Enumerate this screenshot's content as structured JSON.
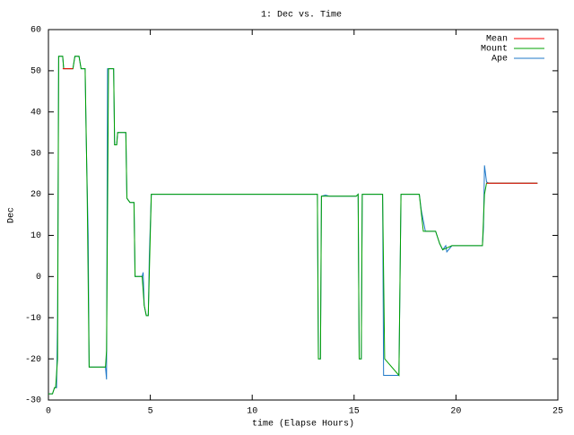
{
  "chart_data": {
    "type": "line",
    "title": "1: Dec vs. Time",
    "x_label": "time (Elapse Hours)",
    "y_label": "Dec",
    "xlim": [
      0,
      25
    ],
    "xticks": [
      0,
      5,
      10,
      15,
      20,
      25
    ],
    "ylim": [
      -30,
      60
    ],
    "yticks": [
      -30,
      -20,
      -10,
      0,
      10,
      20,
      30,
      40,
      50,
      60
    ],
    "legend": "top-right",
    "series": [
      {
        "name": "Mean",
        "color": "#ff0000",
        "x": [
          0.7,
          1.2,
          null,
          21.5,
          24
        ],
        "values": [
          50.5,
          50.5,
          null,
          22.7,
          22.7
        ]
      },
      {
        "name": "Mount",
        "color": "#00a000",
        "x": [
          0,
          0.2,
          0.3,
          0.35,
          0.45,
          0.5,
          0.7,
          0.75,
          1.2,
          1.3,
          1.5,
          1.6,
          1.8,
          1.9,
          2.0,
          2.8,
          2.85,
          2.95,
          3.2,
          3.25,
          3.35,
          3.4,
          3.8,
          3.85,
          4.0,
          4.2,
          4.25,
          4.6,
          4.7,
          4.8,
          4.9,
          5.05,
          13.2,
          13.25,
          13.35,
          13.4,
          15.1,
          15.2,
          15.25,
          15.35,
          15.4,
          16.4,
          16.5,
          17.2,
          17.3,
          18.2,
          18.4,
          18.5,
          19.0,
          19.2,
          19.35,
          19.8,
          21.3,
          21.4,
          21.5,
          24
        ],
        "values": [
          -28.5,
          -28.5,
          -27,
          -27,
          -20,
          53.5,
          53.5,
          50.5,
          50.5,
          53.5,
          53.5,
          50.5,
          50.5,
          20,
          -22,
          -22,
          -18,
          50.5,
          50.5,
          32,
          32,
          35,
          35,
          19,
          18,
          18,
          0,
          0,
          -7,
          -9.5,
          -9.5,
          20,
          20,
          -20,
          -20,
          19.5,
          19.5,
          20,
          -20,
          -20,
          20,
          20,
          -20,
          -24,
          20,
          20,
          11,
          11,
          11,
          8,
          6.5,
          7.5,
          7.5,
          20,
          22.7,
          22.7
        ]
      },
      {
        "name": "Ape",
        "color": "#1f78c8",
        "x": [
          0,
          0.2,
          0.3,
          0.4,
          0.45,
          0.5,
          0.7,
          0.75,
          1.2,
          1.3,
          1.5,
          1.6,
          1.8,
          1.85,
          1.95,
          2.0,
          2.8,
          2.85,
          2.9,
          3.2,
          3.25,
          3.35,
          3.4,
          3.8,
          3.85,
          4.0,
          4.2,
          4.25,
          4.6,
          4.65,
          4.7,
          4.8,
          4.9,
          4.95,
          5.05,
          13.2,
          13.25,
          13.35,
          13.4,
          13.6,
          13.8,
          15.1,
          15.2,
          15.25,
          15.35,
          15.4,
          16.4,
          16.45,
          17.2,
          17.3,
          18.2,
          18.3,
          18.5,
          19.0,
          19.2,
          19.35,
          19.5,
          19.55,
          19.8,
          21.3,
          21.35,
          21.4,
          21.5,
          21.6,
          24
        ],
        "values": [
          -28.5,
          -28.5,
          -27,
          -27,
          -10,
          53.5,
          53.5,
          50.5,
          50.5,
          53.5,
          53.5,
          50.5,
          50.5,
          35,
          10,
          -22,
          -22,
          -25,
          50.5,
          50.5,
          32,
          32,
          35,
          35,
          19,
          18,
          18,
          0,
          0,
          1,
          -7,
          -9.5,
          -9.5,
          5,
          20,
          20,
          -20,
          -20,
          19.5,
          19.8,
          19.5,
          19.5,
          20,
          -20,
          -20,
          20,
          20,
          -24,
          -24,
          20,
          20,
          16,
          11,
          11,
          8,
          6.5,
          7.5,
          6,
          7.5,
          7.5,
          12,
          27,
          23,
          22.7,
          22.7
        ]
      }
    ]
  }
}
